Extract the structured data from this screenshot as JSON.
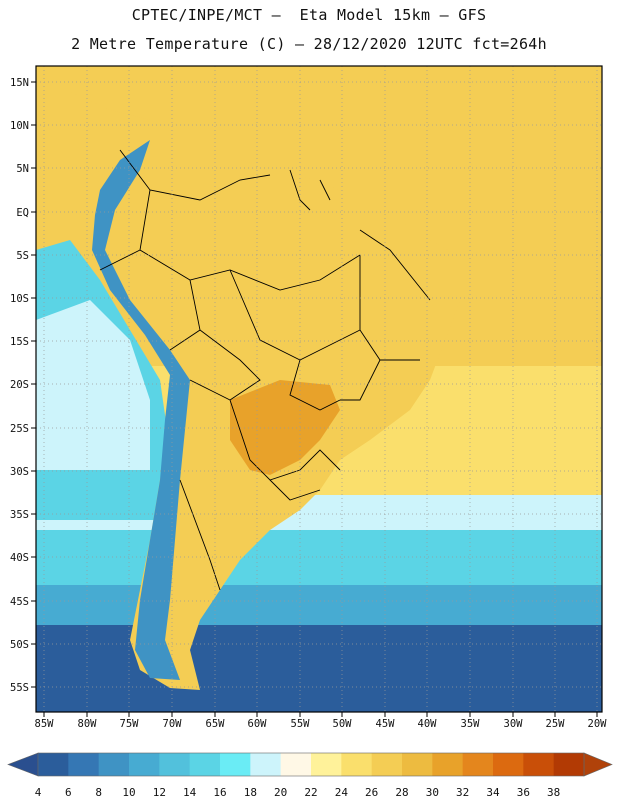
{
  "title": {
    "line1": "CPTEC/INPE/MCT –  Eta Model 15km – GFS",
    "line2": "2 Metre Temperature (C) – 28/12/2020 12UTC fct=264h"
  },
  "axes": {
    "lat_labels": [
      "15N",
      "10N",
      "5N",
      "EQ",
      "5S",
      "10S",
      "15S",
      "20S",
      "25S",
      "30S",
      "35S",
      "40S",
      "45S",
      "50S",
      "55S"
    ],
    "lon_labels": [
      "85W",
      "80W",
      "75W",
      "70W",
      "65W",
      "60W",
      "55W",
      "50W",
      "45W",
      "40W",
      "35W",
      "30W",
      "25W",
      "20W"
    ]
  },
  "colorbar": {
    "labels": [
      "4",
      "6",
      "8",
      "10",
      "12",
      "14",
      "16",
      "18",
      "20",
      "22",
      "24",
      "26",
      "28",
      "30",
      "32",
      "34",
      "36",
      "38"
    ],
    "colors": [
      "#2b5d9b",
      "#3577b4",
      "#3f93c4",
      "#47abd2",
      "#52c1dc",
      "#5bd4e5",
      "#6aecf5",
      "#cdf4fb",
      "#fff8e6",
      "#fff29a",
      "#fadf6c",
      "#f4cd54",
      "#edbb40",
      "#e8a22a",
      "#e4861d",
      "#dc6a10",
      "#c94f08",
      "#b23a04"
    ],
    "left_arrow_color": "#2a4f8f",
    "right_arrow_color": "#b0420a"
  },
  "map_colors": {
    "ocean_cold": "#2b5d9b",
    "ocean_cool": "#47abd2",
    "ocean_mild": "#5bd4e5",
    "ocean_pale": "#cdf4fb",
    "ocean_warm": "#fadf6c",
    "ocean_hot": "#f4cd54",
    "land_warm": "#f4cd54",
    "land_hot": "#e8a22a",
    "andes": "#3f93c4",
    "border": "#000000",
    "grid": "#999999"
  }
}
